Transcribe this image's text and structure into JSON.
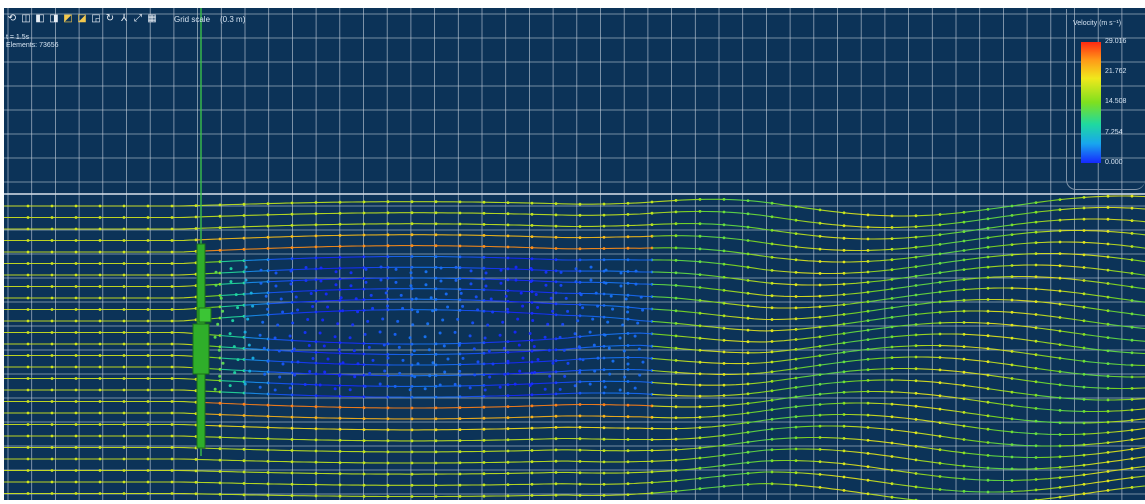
{
  "toolbar": {
    "tools": [
      {
        "name": "view-iso-icon",
        "glyph": "⟲"
      },
      {
        "name": "view-front-icon",
        "glyph": "◫"
      },
      {
        "name": "view-back-icon",
        "glyph": "◧"
      },
      {
        "name": "view-left-icon",
        "glyph": "◨"
      },
      {
        "name": "view-right-icon",
        "glyph": "◩"
      },
      {
        "name": "view-top-icon",
        "glyph": "◪"
      },
      {
        "name": "view-bottom-icon",
        "glyph": "◲"
      },
      {
        "name": "rotate-icon",
        "glyph": "↻"
      },
      {
        "name": "axis-icon",
        "glyph": "⅄"
      },
      {
        "name": "measure-icon",
        "glyph": "⤢"
      },
      {
        "name": "grid-icon",
        "glyph": "▦"
      }
    ],
    "grid_scale_label": "Grid scale",
    "grid_scale_value": "(0.3 m)"
  },
  "info": {
    "time": "t = 1.5s",
    "elements": "Elements: 73656"
  },
  "legend": {
    "title": "Velocity (m s⁻¹)",
    "ticks": [
      "29.016",
      "21.762",
      "14.508",
      "7.254",
      "0.000"
    ],
    "colors": [
      "#ff2a12",
      "#ff9a18",
      "#f0e81c",
      "#7ee01f",
      "#1fd9a0",
      "#18a6ee",
      "#1628ff"
    ]
  },
  "colors": {
    "background": "#0c3358",
    "grid": "#c9d2dc",
    "model": "#2fae2a",
    "axis": "#39c04a"
  }
}
